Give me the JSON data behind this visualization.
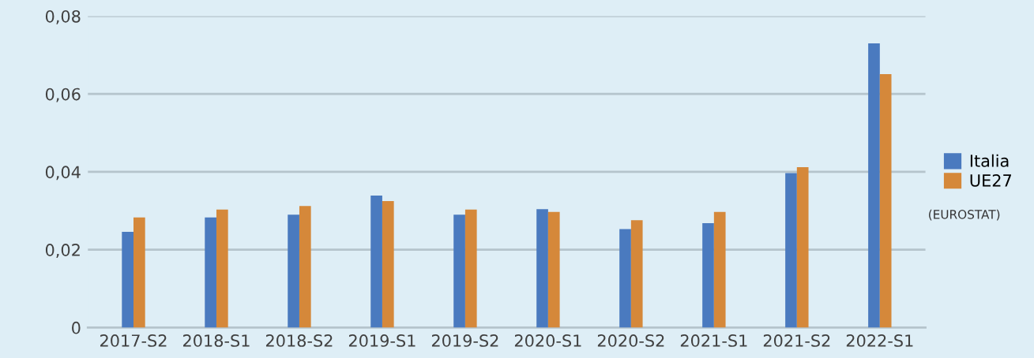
{
  "chart_data": {
    "type": "bar",
    "categories": [
      "2017-S2",
      "2018-S1",
      "2018-S2",
      "2019-S1",
      "2019-S2",
      "2020-S1",
      "2020-S2",
      "2021-S1",
      "2021-S2",
      "2022-S1"
    ],
    "series": [
      {
        "name": "Italia",
        "color": "#4a7abf",
        "values": [
          0.0246,
          0.0283,
          0.029,
          0.0339,
          0.029,
          0.0304,
          0.0253,
          0.0268,
          0.0397,
          0.073
        ]
      },
      {
        "name": "UE27",
        "color": "#d5883a",
        "values": [
          0.0283,
          0.0303,
          0.0312,
          0.0325,
          0.0303,
          0.0297,
          0.0276,
          0.0297,
          0.0412,
          0.0651
        ]
      }
    ],
    "ylim": [
      0,
      0.08
    ],
    "yticks": [
      {
        "value": 0,
        "label": "0"
      },
      {
        "value": 0.02,
        "label": "0,02"
      },
      {
        "value": 0.04,
        "label": "0,04"
      },
      {
        "value": 0.06,
        "label": "0,06"
      },
      {
        "value": 0.08,
        "label": "0,08"
      }
    ],
    "grid": "y",
    "legend": "right",
    "annotations": [
      "(EUROSTAT)"
    ]
  }
}
